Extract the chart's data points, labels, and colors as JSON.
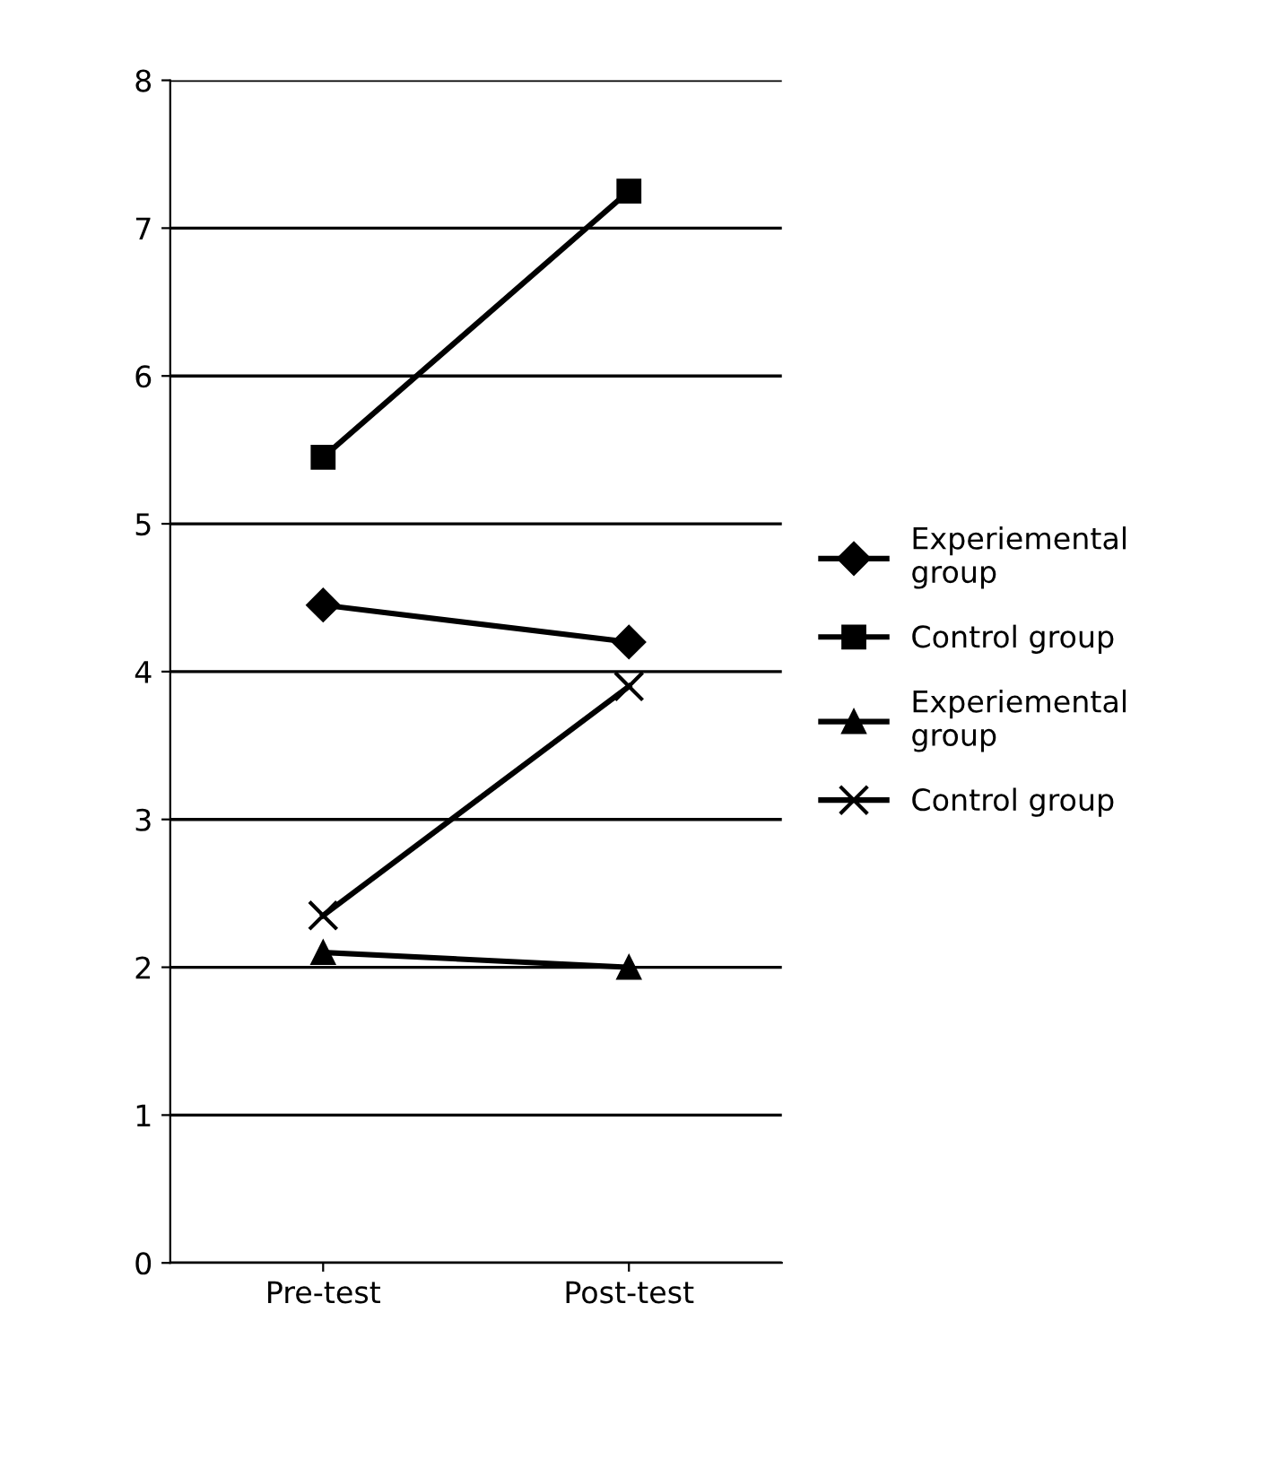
{
  "chart_data": {
    "type": "line",
    "categories": [
      "Pre-test",
      "Post-test"
    ],
    "series": [
      {
        "name": "Experiemental group",
        "color": "#000000",
        "marker": "diamond",
        "values": [
          4.45,
          4.2
        ]
      },
      {
        "name": "Control group",
        "color": "#000000",
        "marker": "square",
        "values": [
          5.45,
          7.25
        ]
      },
      {
        "name": "Experiemental group",
        "color": "#000000",
        "marker": "triangle",
        "values": [
          2.1,
          2.0
        ]
      },
      {
        "name": "Control group",
        "color": "#000000",
        "marker": "cross",
        "values": [
          2.35,
          3.9
        ]
      }
    ],
    "ylim": [
      0,
      8
    ],
    "yticks": [
      0,
      1,
      2,
      3,
      4,
      5,
      6,
      7,
      8
    ],
    "grid": "y",
    "legend": "right",
    "line_style": "solid"
  }
}
